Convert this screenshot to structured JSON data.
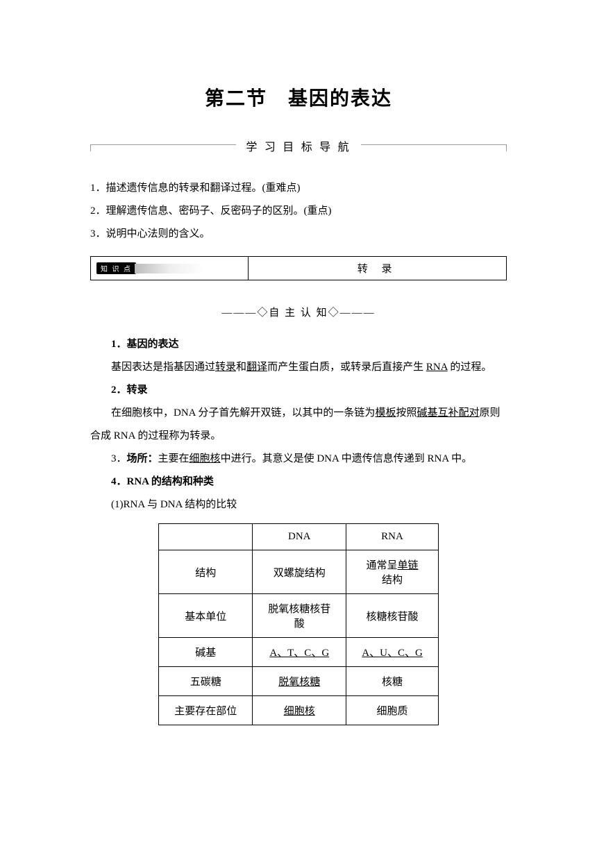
{
  "title": "第二节　基因的表达",
  "nav_section": {
    "label": "学 习 目 标 导 航"
  },
  "objectives": [
    "1．描述遗传信息的转录和翻译过程。(重难点)",
    "2．理解遗传信息、密码子、反密码子的区别。(重点)",
    "3．说明中心法则的含义。"
  ],
  "topic_box": {
    "badge": "知 识 点",
    "label": "转 录"
  },
  "sub_section": "———◇自 主 认 知◇———",
  "content": {
    "h1": "1．基因的表达",
    "p1_prefix": "基因表达是指基因通过",
    "p1_u1": "转录",
    "p1_mid1": "和",
    "p1_u2": "翻译",
    "p1_mid2": "而产生蛋白质，或转录后直接产生 ",
    "p1_u3": "RNA",
    "p1_suffix": " 的过程。",
    "h2": "2．转录",
    "p2_prefix": "在细胞核中，DNA 分子首先解开双链，以其中的一条链为",
    "p2_u1": "模板",
    "p2_mid1": "按照",
    "p2_u2": "碱基互补配对",
    "p2_suffix": "原则合成 RNA 的过程称为转录。",
    "h3_prefix": "3．",
    "h3_bold": "场所：",
    "h3_mid": "主要在",
    "h3_u1": "细胞核",
    "h3_suffix": "中进行。其意义是使 DNA 中遗传信息传递到 RNA 中。",
    "h4": "4．RNA 的结构和种类",
    "p4": "(1)RNA 与 DNA 结构的比较"
  },
  "table": {
    "headers": [
      "",
      "DNA",
      "RNA"
    ],
    "rows": [
      {
        "label": "结构",
        "dna": "双螺旋结构",
        "rna_prefix": "通常呈",
        "rna_u": "单链",
        "rna_suffix": "结构"
      },
      {
        "label": "基本单位",
        "dna": "脱氧核糖核苷酸",
        "rna": "核糖核苷酸"
      },
      {
        "label": "碱基",
        "dna_u": "A、T、C、G",
        "rna_u_prefix": "A、",
        "rna_u_mid": "U",
        "rna_u_suffix": "、C、G"
      },
      {
        "label": "五碳糖",
        "dna_u": "脱氧核糖",
        "rna": "核糖"
      },
      {
        "label": "主要存在部位",
        "dna_u": "细胞核",
        "rna": "细胞质"
      }
    ]
  },
  "colors": {
    "text": "#000000",
    "bg": "#ffffff",
    "divider": "#999999"
  }
}
